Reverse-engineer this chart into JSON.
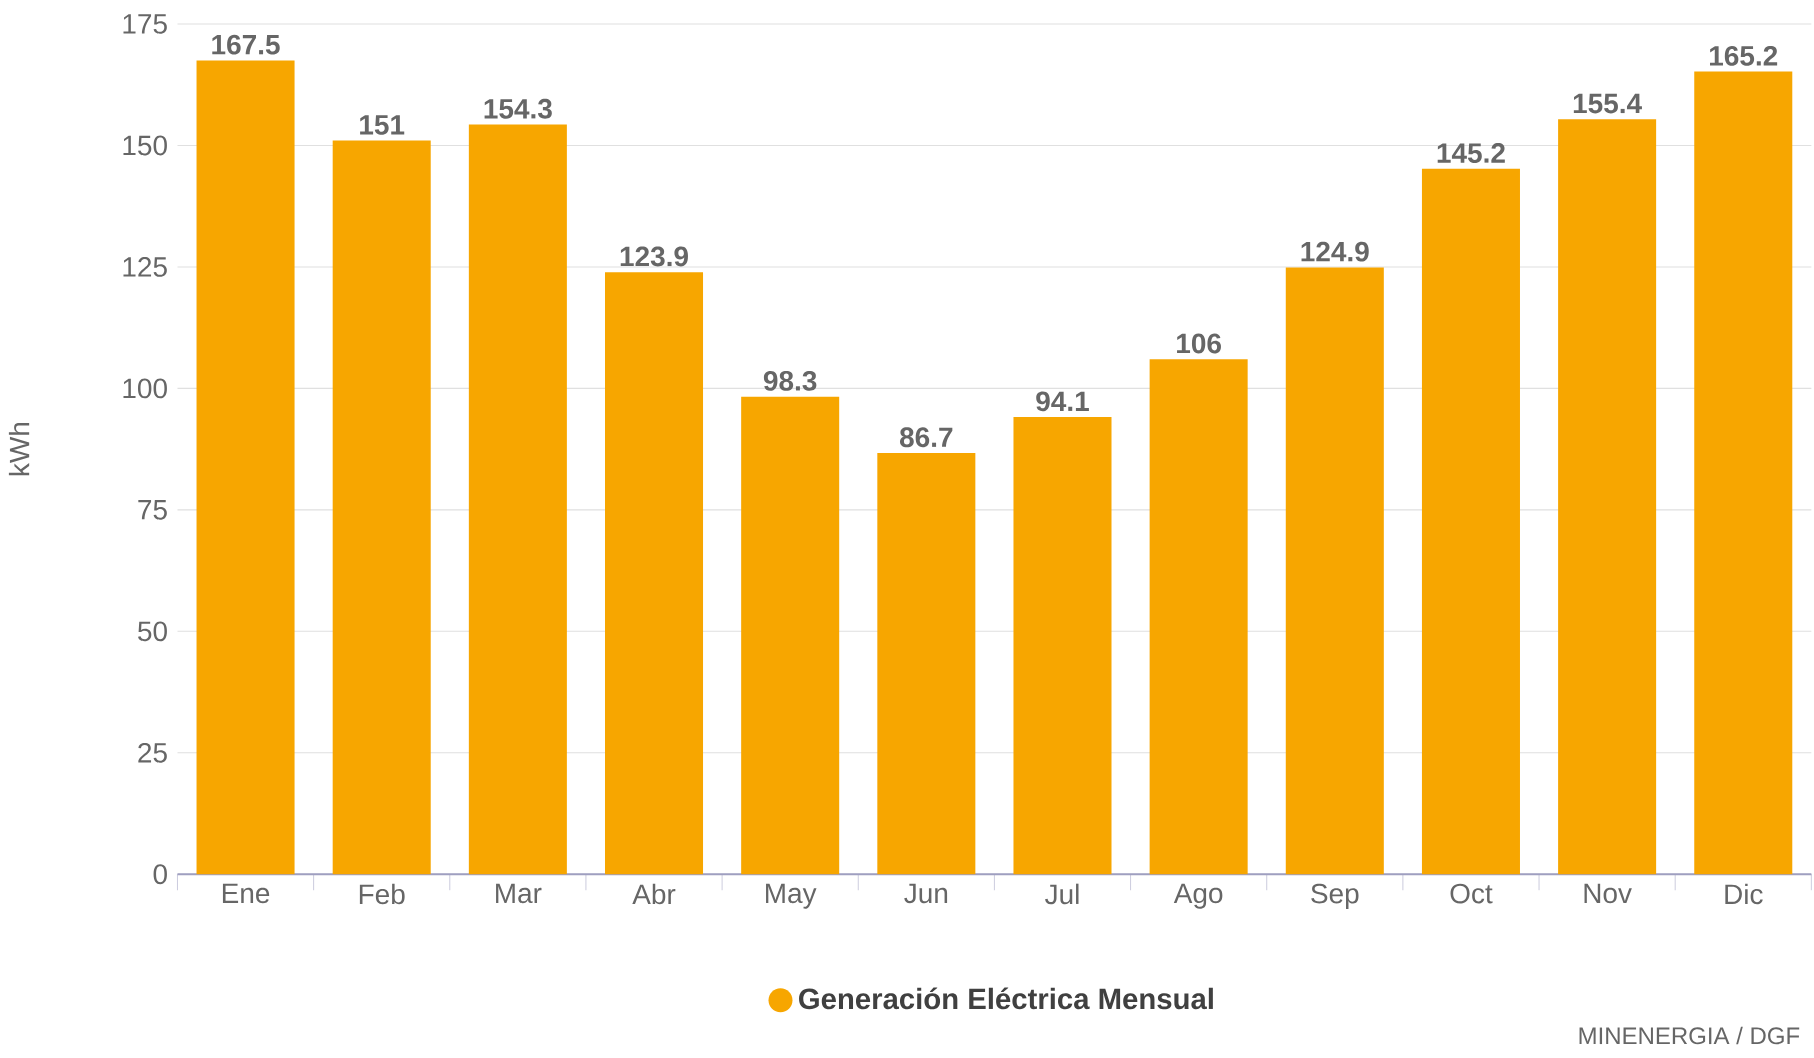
{
  "chart_data": {
    "type": "bar",
    "ylabel": "kWh",
    "categories": [
      "Ene",
      "Feb",
      "Mar",
      "Abr",
      "May",
      "Jun",
      "Jul",
      "Ago",
      "Sep",
      "Oct",
      "Nov",
      "Dic"
    ],
    "series": [
      {
        "name": "Generación Eléctrica Mensual",
        "color": "#f7a600",
        "values": [
          167.5,
          151,
          154.3,
          123.9,
          98.3,
          86.7,
          94.1,
          106,
          124.9,
          145.2,
          155.4,
          165.2
        ]
      }
    ],
    "ylim": [
      0,
      175
    ],
    "yticks": [
      0,
      25,
      50,
      75,
      100,
      125,
      150,
      175
    ],
    "grid": "y",
    "legend": "bottom",
    "data_labels": true,
    "annotations": [
      "MINENERGIA / DGF"
    ]
  }
}
